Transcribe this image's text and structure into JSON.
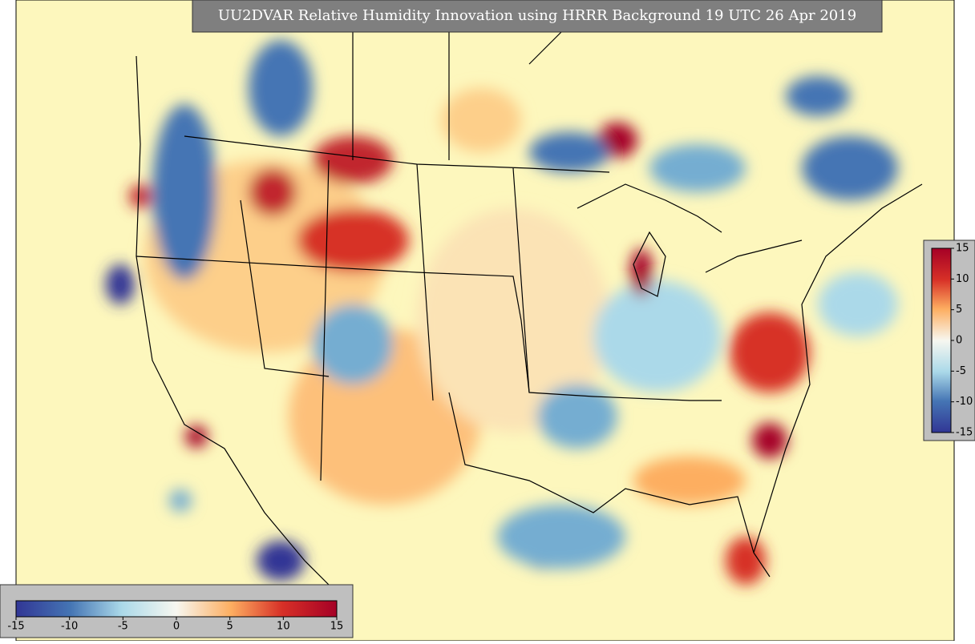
{
  "title": "UU2DVAR Relative Humidity Innovation using HRRR Background 19 UTC 26 Apr 2019",
  "colorbar": {
    "range": [
      -15,
      15
    ],
    "ticks": [
      -15,
      -10,
      -5,
      0,
      5,
      10,
      15
    ]
  }
}
